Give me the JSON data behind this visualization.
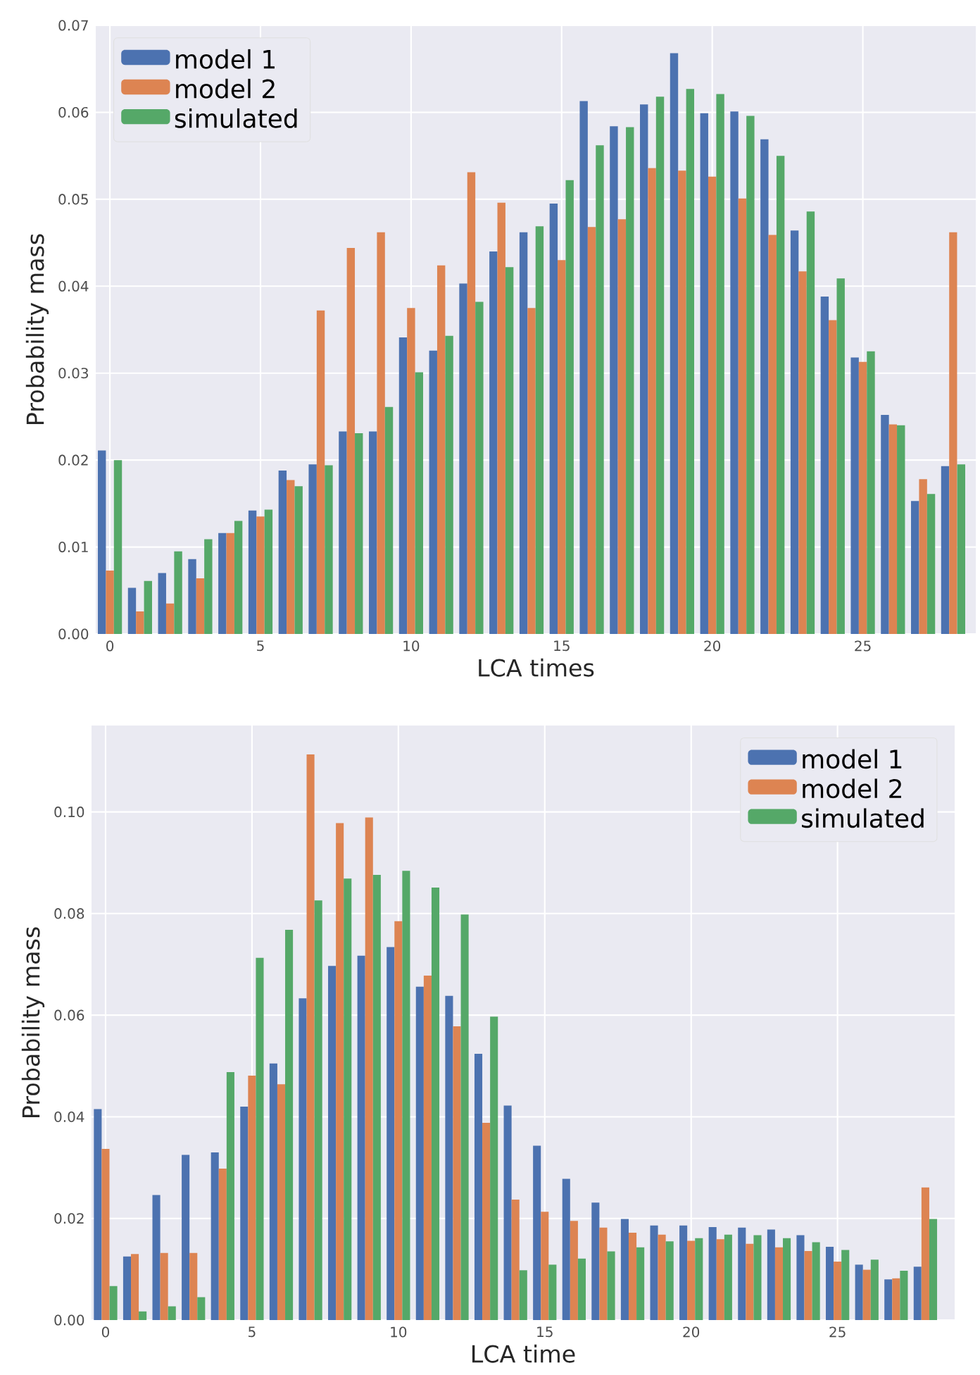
{
  "chart_data": [
    {
      "type": "bar",
      "xlabel": "LCA times",
      "ylabel": "Probability mass",
      "x": [
        0,
        1,
        2,
        3,
        4,
        5,
        6,
        7,
        8,
        9,
        10,
        11,
        12,
        13,
        14,
        15,
        16,
        17,
        18,
        19,
        20,
        21,
        22,
        23,
        24,
        25,
        26,
        27,
        28
      ],
      "series": [
        {
          "name": "model 1",
          "color": "#4c72b0",
          "values": [
            0.0211,
            0.0053,
            0.007,
            0.0086,
            0.0116,
            0.0142,
            0.0188,
            0.0195,
            0.0233,
            0.0233,
            0.0341,
            0.0326,
            0.0403,
            0.044,
            0.0462,
            0.0495,
            0.0613,
            0.0584,
            0.0609,
            0.0668,
            0.0599,
            0.0601,
            0.0569,
            0.0464,
            0.0388,
            0.0318,
            0.0252,
            0.0153,
            0.0193
          ]
        },
        {
          "name": "model 2",
          "color": "#dd8452",
          "values": [
            0.0073,
            0.0026,
            0.0035,
            0.0064,
            0.0116,
            0.0135,
            0.0177,
            0.0372,
            0.0444,
            0.0462,
            0.0375,
            0.0424,
            0.0531,
            0.0496,
            0.0375,
            0.043,
            0.0468,
            0.0477,
            0.0536,
            0.0533,
            0.0526,
            0.0501,
            0.0459,
            0.0417,
            0.0361,
            0.0313,
            0.0241,
            0.0178,
            0.0462
          ]
        },
        {
          "name": "simulated",
          "color": "#55a868",
          "values": [
            0.02,
            0.0061,
            0.0095,
            0.0109,
            0.013,
            0.0143,
            0.017,
            0.0194,
            0.0231,
            0.0261,
            0.0301,
            0.0343,
            0.0382,
            0.0422,
            0.0469,
            0.0522,
            0.0562,
            0.0583,
            0.0618,
            0.0627,
            0.0621,
            0.0596,
            0.055,
            0.0486,
            0.0409,
            0.0325,
            0.024,
            0.0161,
            0.0195
          ]
        }
      ],
      "xlim": [
        -0.47,
        28.75
      ],
      "ylim": [
        0,
        0.07
      ],
      "xticks": [
        0,
        5,
        10,
        15,
        20,
        25
      ],
      "yticks": [
        {
          "value": 0,
          "label": "0.00"
        },
        {
          "value": 0.01,
          "label": "0.01"
        },
        {
          "value": 0.02,
          "label": "0.02"
        },
        {
          "value": 0.03,
          "label": "0.03"
        },
        {
          "value": 0.04,
          "label": "0.04"
        },
        {
          "value": 0.05,
          "label": "0.05"
        },
        {
          "value": 0.06,
          "label": "0.06"
        },
        {
          "value": 0.07,
          "label": "0.07"
        }
      ],
      "grid": true,
      "legend": "top left"
    },
    {
      "type": "bar",
      "xlabel": "LCA time",
      "ylabel": "Probability mass",
      "x": [
        0,
        1,
        2,
        3,
        4,
        5,
        6,
        7,
        8,
        9,
        10,
        11,
        12,
        13,
        14,
        15,
        16,
        17,
        18,
        19,
        20,
        21,
        22,
        23,
        24,
        25,
        26,
        27,
        28
      ],
      "series": [
        {
          "name": "model 1",
          "color": "#4c72b0",
          "values": [
            0.0415,
            0.0125,
            0.0246,
            0.0325,
            0.033,
            0.042,
            0.0505,
            0.0633,
            0.0697,
            0.0717,
            0.0734,
            0.0656,
            0.0638,
            0.0524,
            0.0422,
            0.0343,
            0.0278,
            0.0231,
            0.0199,
            0.0186,
            0.0186,
            0.0183,
            0.0182,
            0.0178,
            0.0167,
            0.0144,
            0.0109,
            0.008,
            0.0105
          ]
        },
        {
          "name": "model 2",
          "color": "#dd8452",
          "values": [
            0.0337,
            0.013,
            0.0132,
            0.0132,
            0.0298,
            0.0481,
            0.0464,
            0.1113,
            0.0978,
            0.0989,
            0.0785,
            0.0678,
            0.0578,
            0.0388,
            0.0237,
            0.0213,
            0.0195,
            0.0182,
            0.0172,
            0.0168,
            0.0156,
            0.0159,
            0.015,
            0.0143,
            0.0136,
            0.0115,
            0.0099,
            0.0082,
            0.0261
          ]
        },
        {
          "name": "simulated",
          "color": "#55a868",
          "values": [
            0.0067,
            0.0017,
            0.0027,
            0.0045,
            0.0488,
            0.0713,
            0.0768,
            0.0826,
            0.0869,
            0.0876,
            0.0884,
            0.0851,
            0.0798,
            0.0597,
            0.0098,
            0.0109,
            0.0121,
            0.0135,
            0.0143,
            0.0155,
            0.0161,
            0.0168,
            0.0167,
            0.0161,
            0.0153,
            0.0138,
            0.0119,
            0.0097,
            0.0199
          ]
        }
      ],
      "xlim": [
        -0.48,
        29.0
      ],
      "ylim": [
        0,
        0.117
      ],
      "xticks": [
        0,
        5,
        10,
        15,
        20,
        25
      ],
      "yticks": [
        {
          "value": 0,
          "label": "0.00"
        },
        {
          "value": 0.02,
          "label": "0.02"
        },
        {
          "value": 0.04,
          "label": "0.04"
        },
        {
          "value": 0.06,
          "label": "0.06"
        },
        {
          "value": 0.08,
          "label": "0.08"
        },
        {
          "value": 0.1,
          "label": "0.10"
        }
      ],
      "grid": true,
      "legend": "top right"
    }
  ]
}
